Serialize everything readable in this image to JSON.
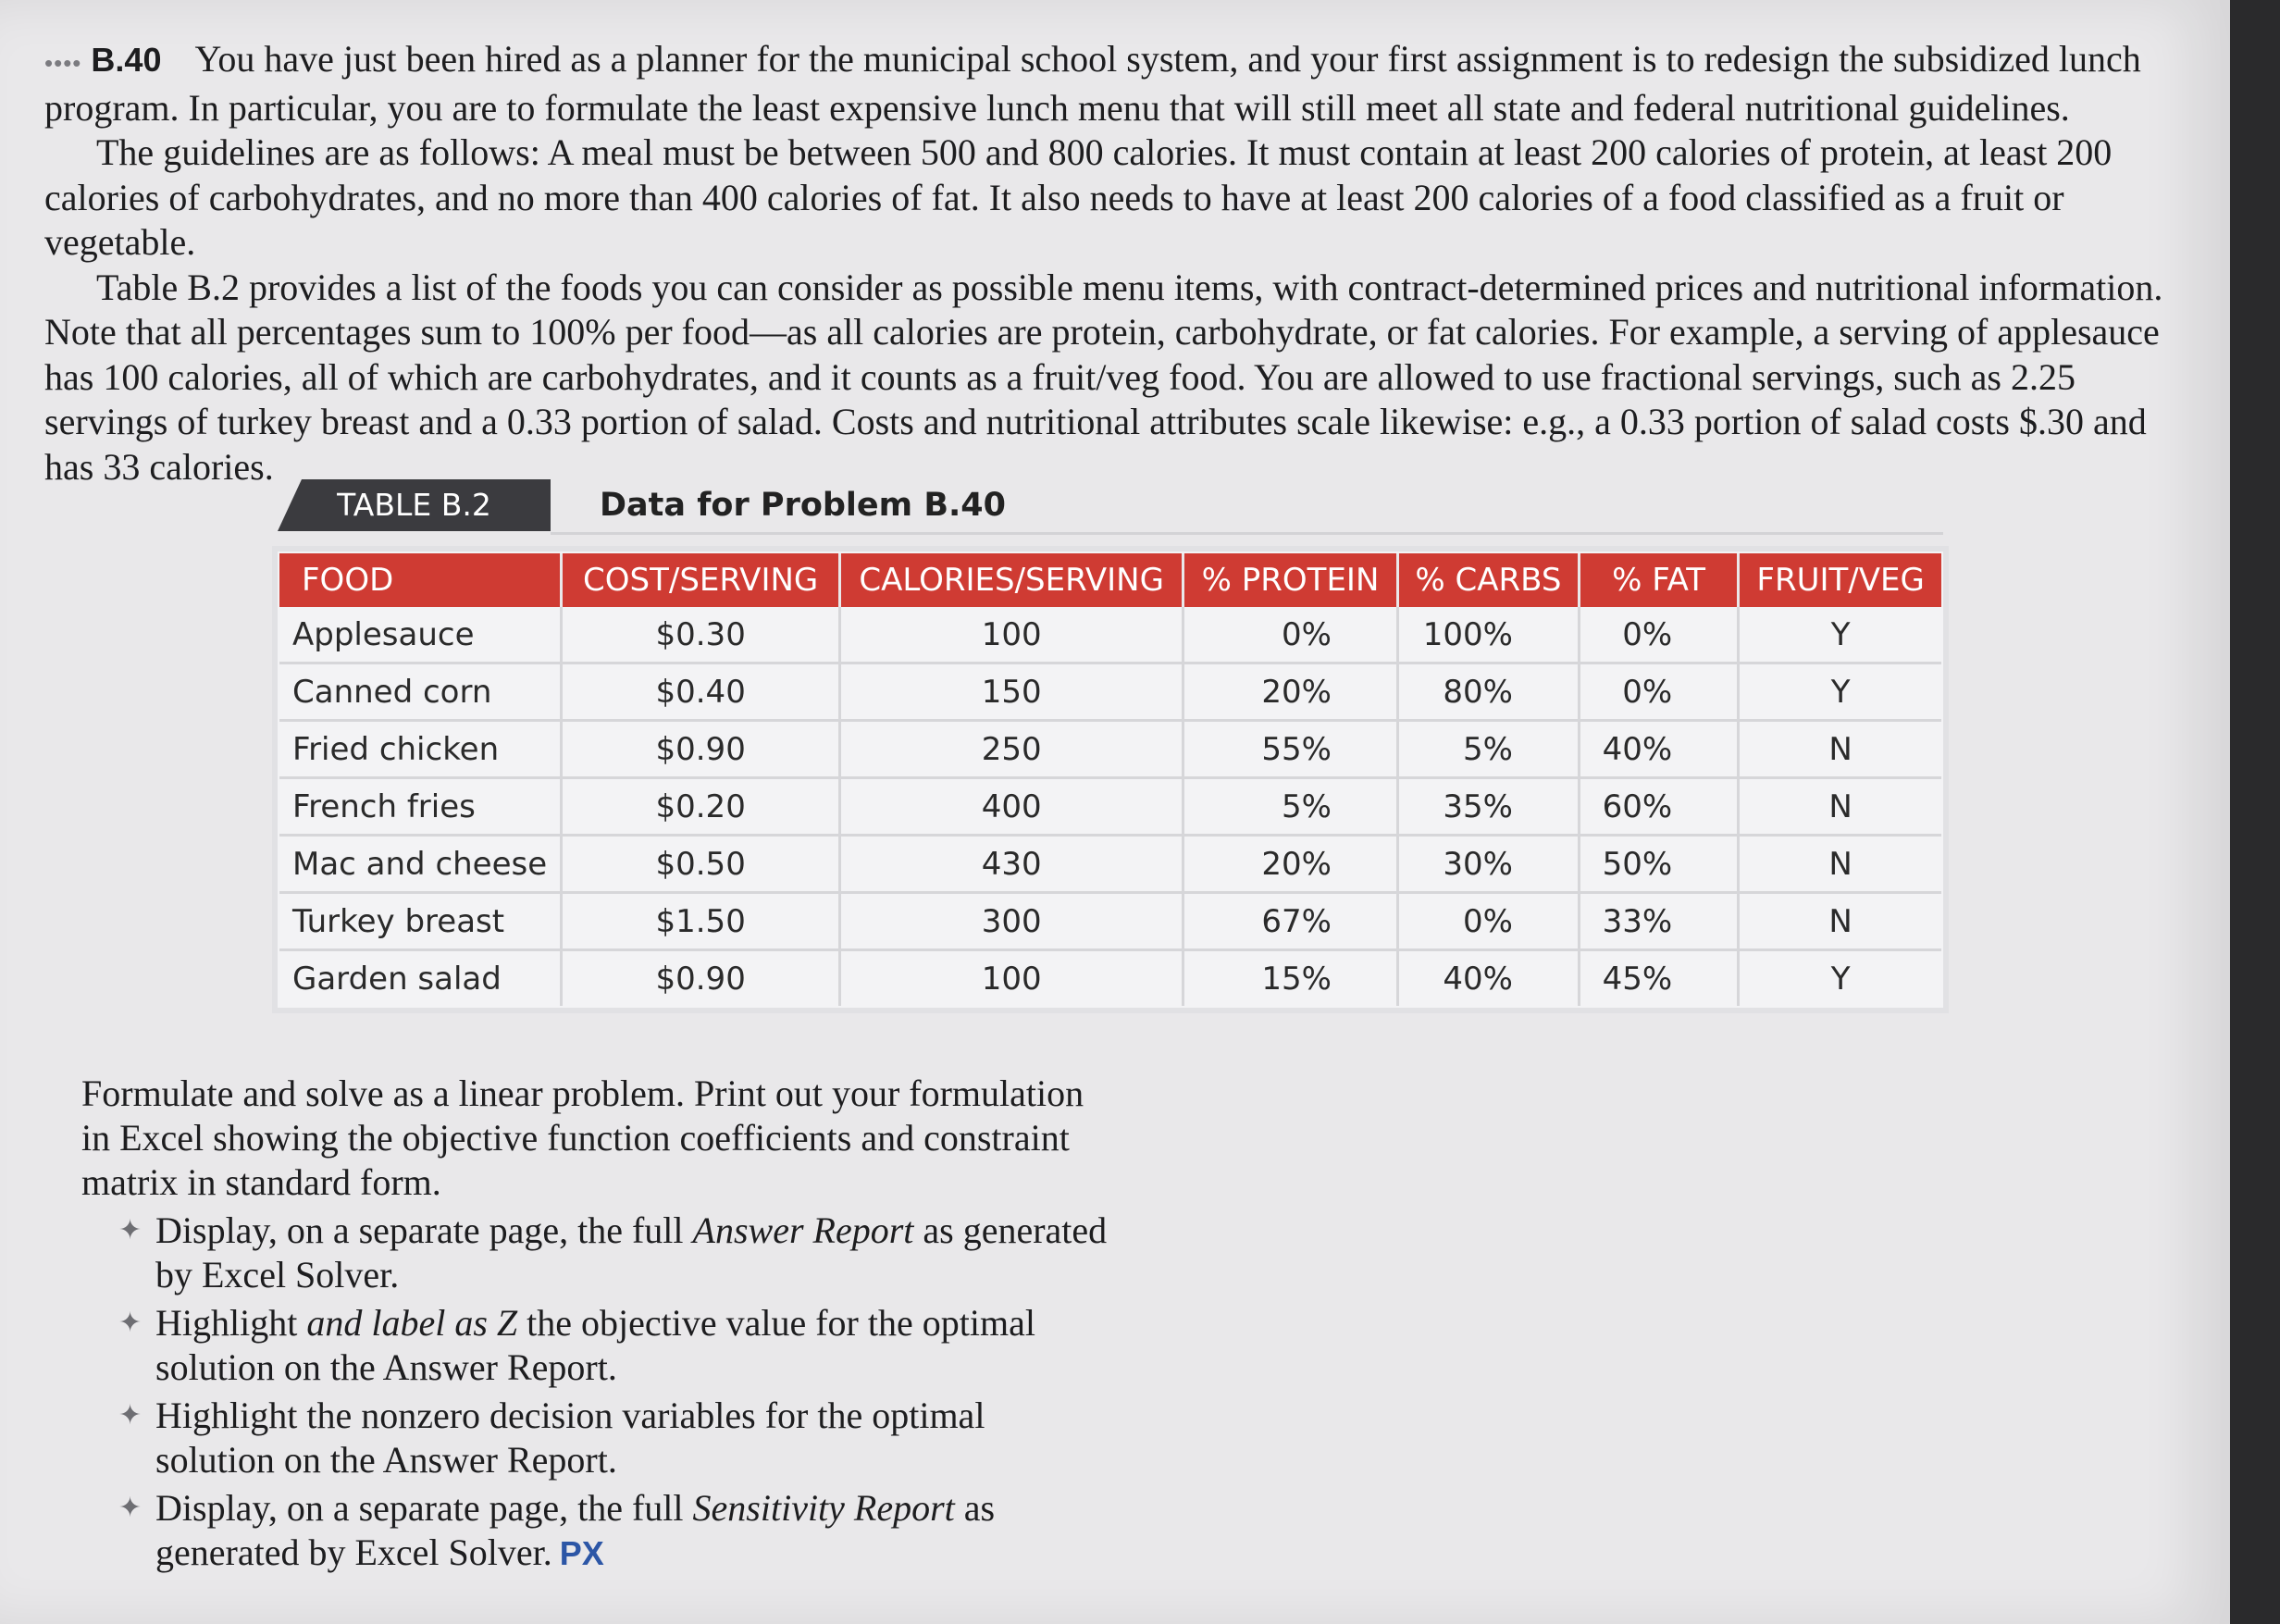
{
  "problem": {
    "stars": "••••",
    "id": "B.40",
    "para1": "You have just been hired as a planner for the municipal school system, and your first assignment is to redesign the subsidized lunch program. In particular, you are to formulate the least expensive lunch menu that will still meet all state and federal nutritional guidelines.",
    "para2": "The guidelines are as follows: A meal must be between 500 and 800 calories. It must contain at least 200 calories of protein, at least 200 calories of carbohydrates, and no more than 400 calories of fat. It also needs to have at least 200 calories of a food classified as a fruit or vegetable.",
    "para3": "Table B.2 provides a list of the foods you can consider as possible menu items, with contract-determined prices and nutritional information. Note that all percentages sum to 100% per food—as all calories are protein, carbohydrate, or fat calories. For example, a serving of applesauce has 100 calories, all of which are carbohydrates, and it counts as a fruit/veg food. You are allowed to use fractional servings, such as 2.25 servings of turkey breast and a 0.33 portion of salad. Costs and nutritional attributes scale likewise: e.g., a 0.33 portion of salad costs $.30 and has 33 calories."
  },
  "table": {
    "tag": "TABLE B.2",
    "title": "Data for Problem B.40",
    "headers": [
      "FOOD",
      "COST/SERVING",
      "CALORIES/SERVING",
      "% PROTEIN",
      "% CARBS",
      "% FAT",
      "FRUIT/VEG"
    ],
    "rows": [
      [
        "Applesauce",
        "$0.30",
        "100",
        "0%",
        "100%",
        "0%",
        "Y"
      ],
      [
        "Canned corn",
        "$0.40",
        "150",
        "20%",
        "80%",
        "0%",
        "Y"
      ],
      [
        "Fried chicken",
        "$0.90",
        "250",
        "55%",
        "5%",
        "40%",
        "N"
      ],
      [
        "French fries",
        "$0.20",
        "400",
        "5%",
        "35%",
        "60%",
        "N"
      ],
      [
        "Mac and cheese",
        "$0.50",
        "430",
        "20%",
        "30%",
        "50%",
        "N"
      ],
      [
        "Turkey breast",
        "$1.50",
        "300",
        "67%",
        "0%",
        "33%",
        "N"
      ],
      [
        "Garden salad",
        "$0.90",
        "100",
        "15%",
        "40%",
        "45%",
        "Y"
      ]
    ]
  },
  "instructions": {
    "intro": "Formulate and solve as a linear problem. Print out your formulation in Excel showing the objective function coefficients and constraint matrix in standard form.",
    "bullet_glyph": "✦",
    "b1_pre": "Display, on a separate page, the full ",
    "b1_em": "Answer Report",
    "b1_post": " as generated by Excel Solver.",
    "b2_pre": "Highlight ",
    "b2_em": "and label as Z",
    "b2_post": " the objective value for the optimal solution on the Answer Report.",
    "b3": "Highlight the nonzero decision variables for the optimal solution on the Answer Report.",
    "b4_pre": "Display, on a separate page, the full ",
    "b4_em": "Sensitivity Report",
    "b4_post": " as generated by Excel Solver.",
    "px": "PX"
  }
}
